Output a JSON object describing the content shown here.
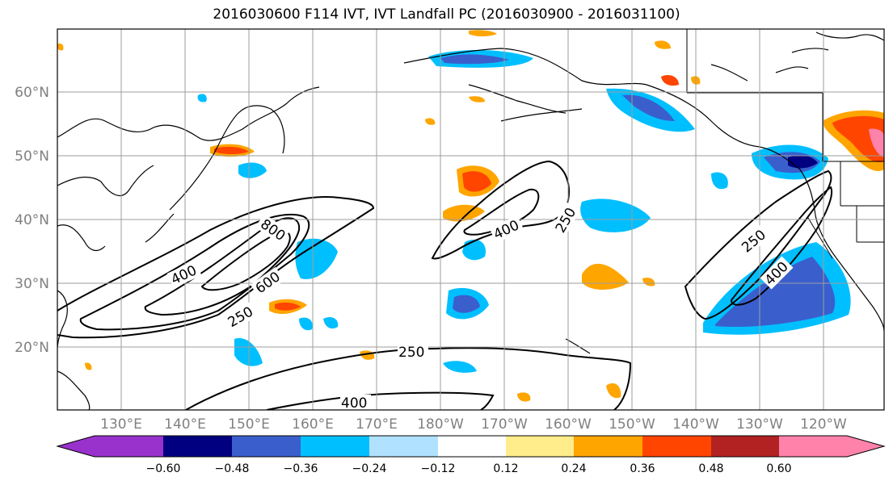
{
  "title": "2016030600 F114 IVT, IVT Landfall PC (2016030900 - 2016031100)",
  "lat_labels": [
    "60°N",
    "50°N",
    "40°N",
    "30°N",
    "20°N"
  ],
  "lon_labels": [
    "130°E",
    "140°E",
    "150°E",
    "160°E",
    "170°E",
    "180°W",
    "170°W",
    "160°W",
    "150°W",
    "140°W",
    "130°W",
    "120°W"
  ],
  "contour_labels": [
    "800",
    "600",
    "400",
    "250",
    "400",
    "250",
    "250",
    "400",
    "250",
    "400"
  ],
  "colorbar": {
    "ticks": [
      "−0.60",
      "−0.48",
      "−0.36",
      "−0.24",
      "−0.12",
      "0.12",
      "0.24",
      "0.36",
      "0.48",
      "0.60"
    ],
    "colors": [
      "#9932cc",
      "#000080",
      "#3a5fcd",
      "#00bfff",
      "#b0e2ff",
      "#ffffff",
      "#ffec8b",
      "#ffa500",
      "#ff4500",
      "#b22222",
      "#ff82ab"
    ]
  },
  "colors": {
    "neg_dark": "#000080",
    "neg_mid": "#3a5fcd",
    "neg_light": "#00bfff",
    "neg_pale": "#b0e2ff",
    "pos_pale": "#ffec8b",
    "pos_light": "#ffa500",
    "pos_mid": "#ff4500",
    "pos_dark": "#b22222",
    "pos_max": "#ff82ab"
  }
}
